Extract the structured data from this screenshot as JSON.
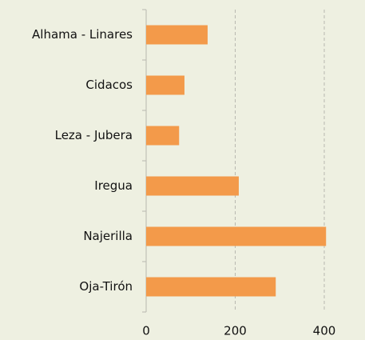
{
  "chart_data": {
    "type": "bar",
    "orientation": "horizontal",
    "categories": [
      "Alhama - Linares",
      "Cidacos",
      "Leza - Jubera",
      "Iregua",
      "Najerilla",
      "Oja-Tirón"
    ],
    "values": [
      138,
      86,
      74,
      208,
      404,
      291
    ],
    "color": "#f39a4a",
    "xlim": [
      0,
      480
    ],
    "xticks": [
      0,
      200,
      400
    ],
    "grid": true
  }
}
